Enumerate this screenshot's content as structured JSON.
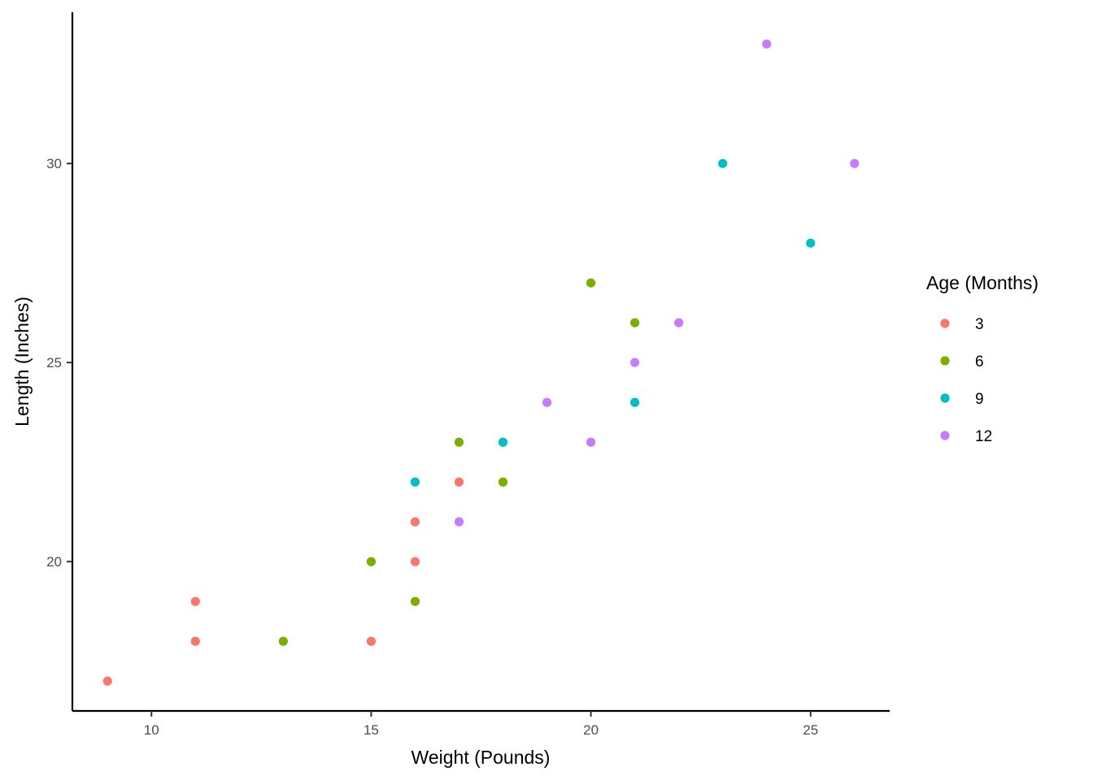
{
  "chart_data": {
    "type": "scatter",
    "title": "",
    "xlabel": "Weight (Pounds)",
    "ylabel": "Length (Inches)",
    "xlim": [
      8.2,
      26.8
    ],
    "ylim": [
      16.25,
      33.8
    ],
    "x_ticks": [
      10,
      15,
      20,
      25
    ],
    "y_ticks": [
      20,
      25,
      30
    ],
    "grid": false,
    "legend": {
      "title": "Age (Months)",
      "placement": "right",
      "entries": [
        "3",
        "6",
        "9",
        "12"
      ]
    },
    "series": [
      {
        "name": "3",
        "color": "#F8766D",
        "points": [
          {
            "x": 9,
            "y": 17
          },
          {
            "x": 11,
            "y": 19
          },
          {
            "x": 11,
            "y": 18
          },
          {
            "x": 15,
            "y": 18
          },
          {
            "x": 16,
            "y": 21
          },
          {
            "x": 16,
            "y": 20
          },
          {
            "x": 17,
            "y": 22
          }
        ]
      },
      {
        "name": "6",
        "color": "#7CAE00",
        "points": [
          {
            "x": 13,
            "y": 18
          },
          {
            "x": 15,
            "y": 20
          },
          {
            "x": 16,
            "y": 19
          },
          {
            "x": 17,
            "y": 23
          },
          {
            "x": 18,
            "y": 22
          },
          {
            "x": 20,
            "y": 27
          },
          {
            "x": 21,
            "y": 26
          }
        ]
      },
      {
        "name": "9",
        "color": "#00BFC4",
        "points": [
          {
            "x": 16,
            "y": 22
          },
          {
            "x": 18,
            "y": 23
          },
          {
            "x": 21,
            "y": 24
          },
          {
            "x": 23,
            "y": 30
          },
          {
            "x": 25,
            "y": 28
          }
        ]
      },
      {
        "name": "12",
        "color": "#C77CFF",
        "points": [
          {
            "x": 17,
            "y": 21
          },
          {
            "x": 19,
            "y": 24
          },
          {
            "x": 20,
            "y": 23
          },
          {
            "x": 21,
            "y": 25
          },
          {
            "x": 22,
            "y": 26
          },
          {
            "x": 24,
            "y": 33
          },
          {
            "x": 26,
            "y": 30
          }
        ]
      }
    ]
  }
}
